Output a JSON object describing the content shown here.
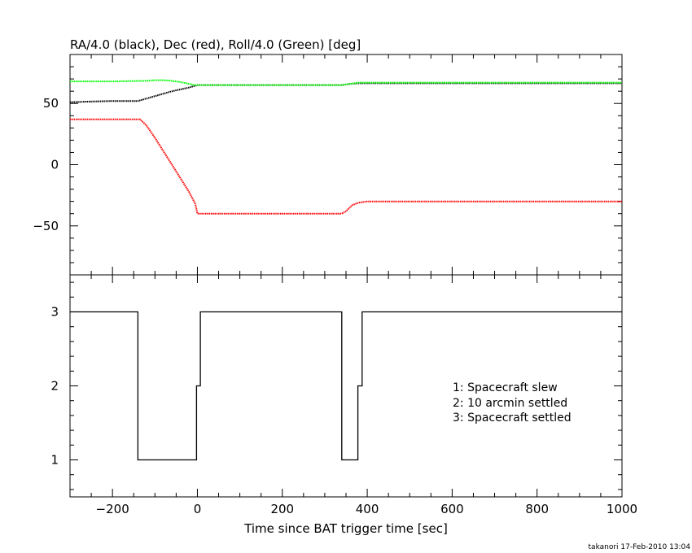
{
  "page": {
    "footer": "takanori 17-Feb-2010 13:04"
  },
  "chart_data": [
    {
      "type": "line",
      "title": "RA/4.0 (black), Dec (red), Roll/4.0 (Green) [deg]",
      "xlim": [
        -300,
        1000
      ],
      "ylim": [
        -90,
        90
      ],
      "y_ticks": [
        -50,
        0,
        50
      ],
      "y_tick_labels": [
        "−50",
        "0",
        "50"
      ],
      "grid": false,
      "series": [
        {
          "color": "#000000",
          "x": [
            -300,
            -260,
            -200,
            -140,
            -130,
            -100,
            -60,
            -20,
            -5,
            0,
            100,
            200,
            300,
            340,
            360,
            380,
            400,
            600,
            800,
            1000
          ],
          "y": [
            51,
            51.5,
            52,
            52,
            53,
            56,
            60,
            63,
            64.5,
            65,
            65,
            65,
            65,
            65,
            66,
            66.5,
            66.5,
            66.5,
            66.5,
            66.5
          ]
        },
        {
          "color": "#ff0000",
          "x": [
            -300,
            -200,
            -135,
            -120,
            -100,
            -80,
            -60,
            -40,
            -20,
            -5,
            0,
            100,
            200,
            300,
            340,
            350,
            365,
            380,
            400,
            600,
            800,
            1000
          ],
          "y": [
            37,
            37,
            37,
            32,
            22,
            11,
            0,
            -11,
            -22,
            -32,
            -40,
            -40,
            -40,
            -40,
            -40,
            -38,
            -33,
            -31,
            -30,
            -30,
            -30,
            -30
          ]
        },
        {
          "color": "#00ff00",
          "x": [
            -300,
            -200,
            -120,
            -100,
            -80,
            -60,
            -40,
            -20,
            -5,
            0,
            100,
            200,
            300,
            340,
            360,
            380,
            400,
            600,
            800,
            1000
          ],
          "y": [
            68,
            68,
            68.5,
            69,
            69,
            68.5,
            67.5,
            66,
            65,
            65,
            65,
            65,
            65,
            65,
            66,
            67,
            67,
            67,
            67,
            67
          ]
        }
      ]
    },
    {
      "type": "line",
      "xlabel": "Time since BAT trigger time [sec]",
      "xlim": [
        -300,
        1000
      ],
      "ylim": [
        0.5,
        3.5
      ],
      "x_ticks": [
        -200,
        0,
        200,
        400,
        600,
        800,
        1000
      ],
      "x_tick_labels": [
        "−200",
        "0",
        "200",
        "400",
        "600",
        "800",
        "1000"
      ],
      "y_ticks": [
        1,
        2,
        3
      ],
      "y_tick_labels": [
        "1",
        "2",
        "3"
      ],
      "grid": false,
      "series": [
        {
          "color": "#000000",
          "x": [
            -300,
            -140,
            -140,
            -2,
            -2,
            7,
            7,
            1000
          ],
          "y": [
            3,
            3,
            1,
            1,
            2,
            2,
            3,
            3
          ],
          "x2": [
            -300,
            340,
            340,
            378,
            378,
            388,
            388,
            1000
          ],
          "y2": [
            3,
            3,
            1,
            1,
            2,
            2,
            3,
            3
          ]
        }
      ],
      "legend": [
        "1: Spacecraft slew",
        "2: 10 arcmin settled",
        "3: Spacecraft settled"
      ]
    }
  ]
}
